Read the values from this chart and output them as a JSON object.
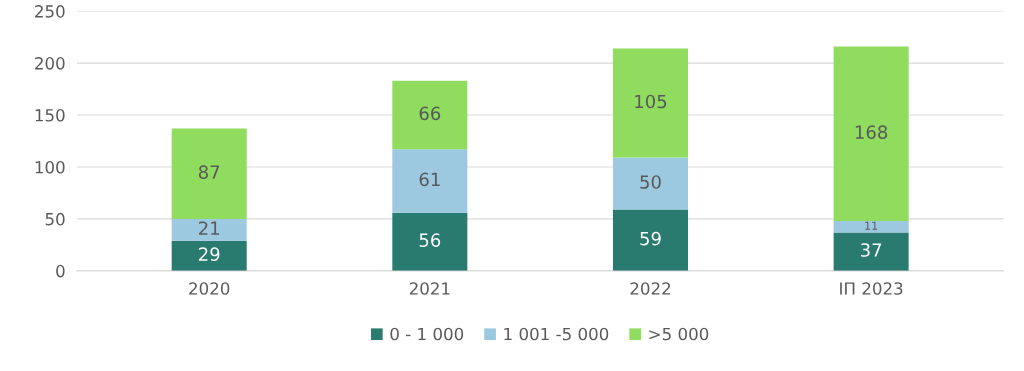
{
  "chart_data": {
    "type": "bar",
    "stacked": true,
    "categories": [
      "2020",
      "2021",
      "2022",
      "ІП 2023"
    ],
    "series": [
      {
        "name": "0 - 1 000",
        "color": "#2a7b6f",
        "values": [
          29,
          56,
          59,
          37
        ]
      },
      {
        "name": "1 001 -5 000",
        "color": "#9dc9e0",
        "values": [
          21,
          61,
          50,
          11
        ]
      },
      {
        "name": ">5 000",
        "color": "#8fdc5f",
        "values": [
          87,
          66,
          105,
          168
        ]
      }
    ],
    "ylim": [
      0,
      250
    ],
    "yticks": [
      0,
      50,
      100,
      150,
      200,
      250
    ],
    "grid": "y",
    "legend": "bottom",
    "data_labels": true
  }
}
